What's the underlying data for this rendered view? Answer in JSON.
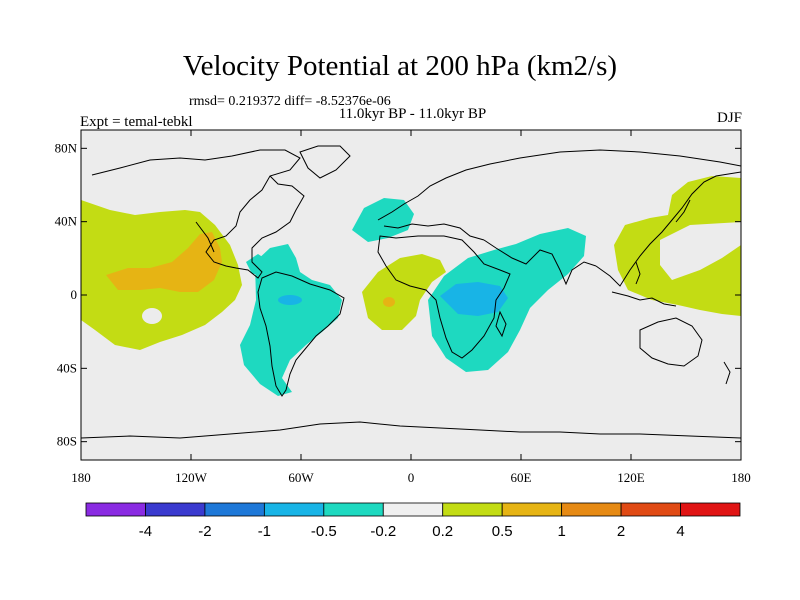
{
  "title": "Velocity Potential at 200 hPa (km2/s)",
  "stats": "rmsd= 0.219372 diff= -8.52376e-06",
  "period": "11.0kyr BP - 11.0kyr BP",
  "expt": "Expt = temal-tebkl",
  "season": "DJF",
  "map": {
    "lat_ticks": [
      "80N",
      "40N",
      "0",
      "40S",
      "80S"
    ],
    "lat_values": [
      80,
      40,
      0,
      -40,
      -80
    ],
    "lon_ticks": [
      "180",
      "120W",
      "60W",
      "0",
      "60E",
      "120E",
      "180"
    ],
    "lon_values": [
      -180,
      -120,
      -60,
      0,
      60,
      120,
      180
    ],
    "ocean_color": "#ececec",
    "coast_color": "#000000"
  },
  "colorbar": {
    "colors": [
      "#8a2be2",
      "#3a3acf",
      "#1e78d8",
      "#18b4e6",
      "#1ed9c0",
      "#f0f0f0",
      "#c3dc14",
      "#e6b414",
      "#e68a14",
      "#e04a14",
      "#e01414"
    ],
    "labels": [
      "-4",
      "-2",
      "-1",
      "-0.5",
      "-0.2",
      "0.2",
      "0.5",
      "1",
      "2",
      "4"
    ]
  },
  "regions": [
    {
      "name": "central-pacific-positive",
      "level": 0.2
    },
    {
      "name": "central-pacific-core",
      "level": 0.5
    },
    {
      "name": "south-america-negative",
      "level": -0.2
    },
    {
      "name": "africa-negative",
      "level": -0.2
    },
    {
      "name": "africa-core",
      "level": -0.5
    },
    {
      "name": "west-pacific-positive",
      "level": 0.2
    }
  ]
}
